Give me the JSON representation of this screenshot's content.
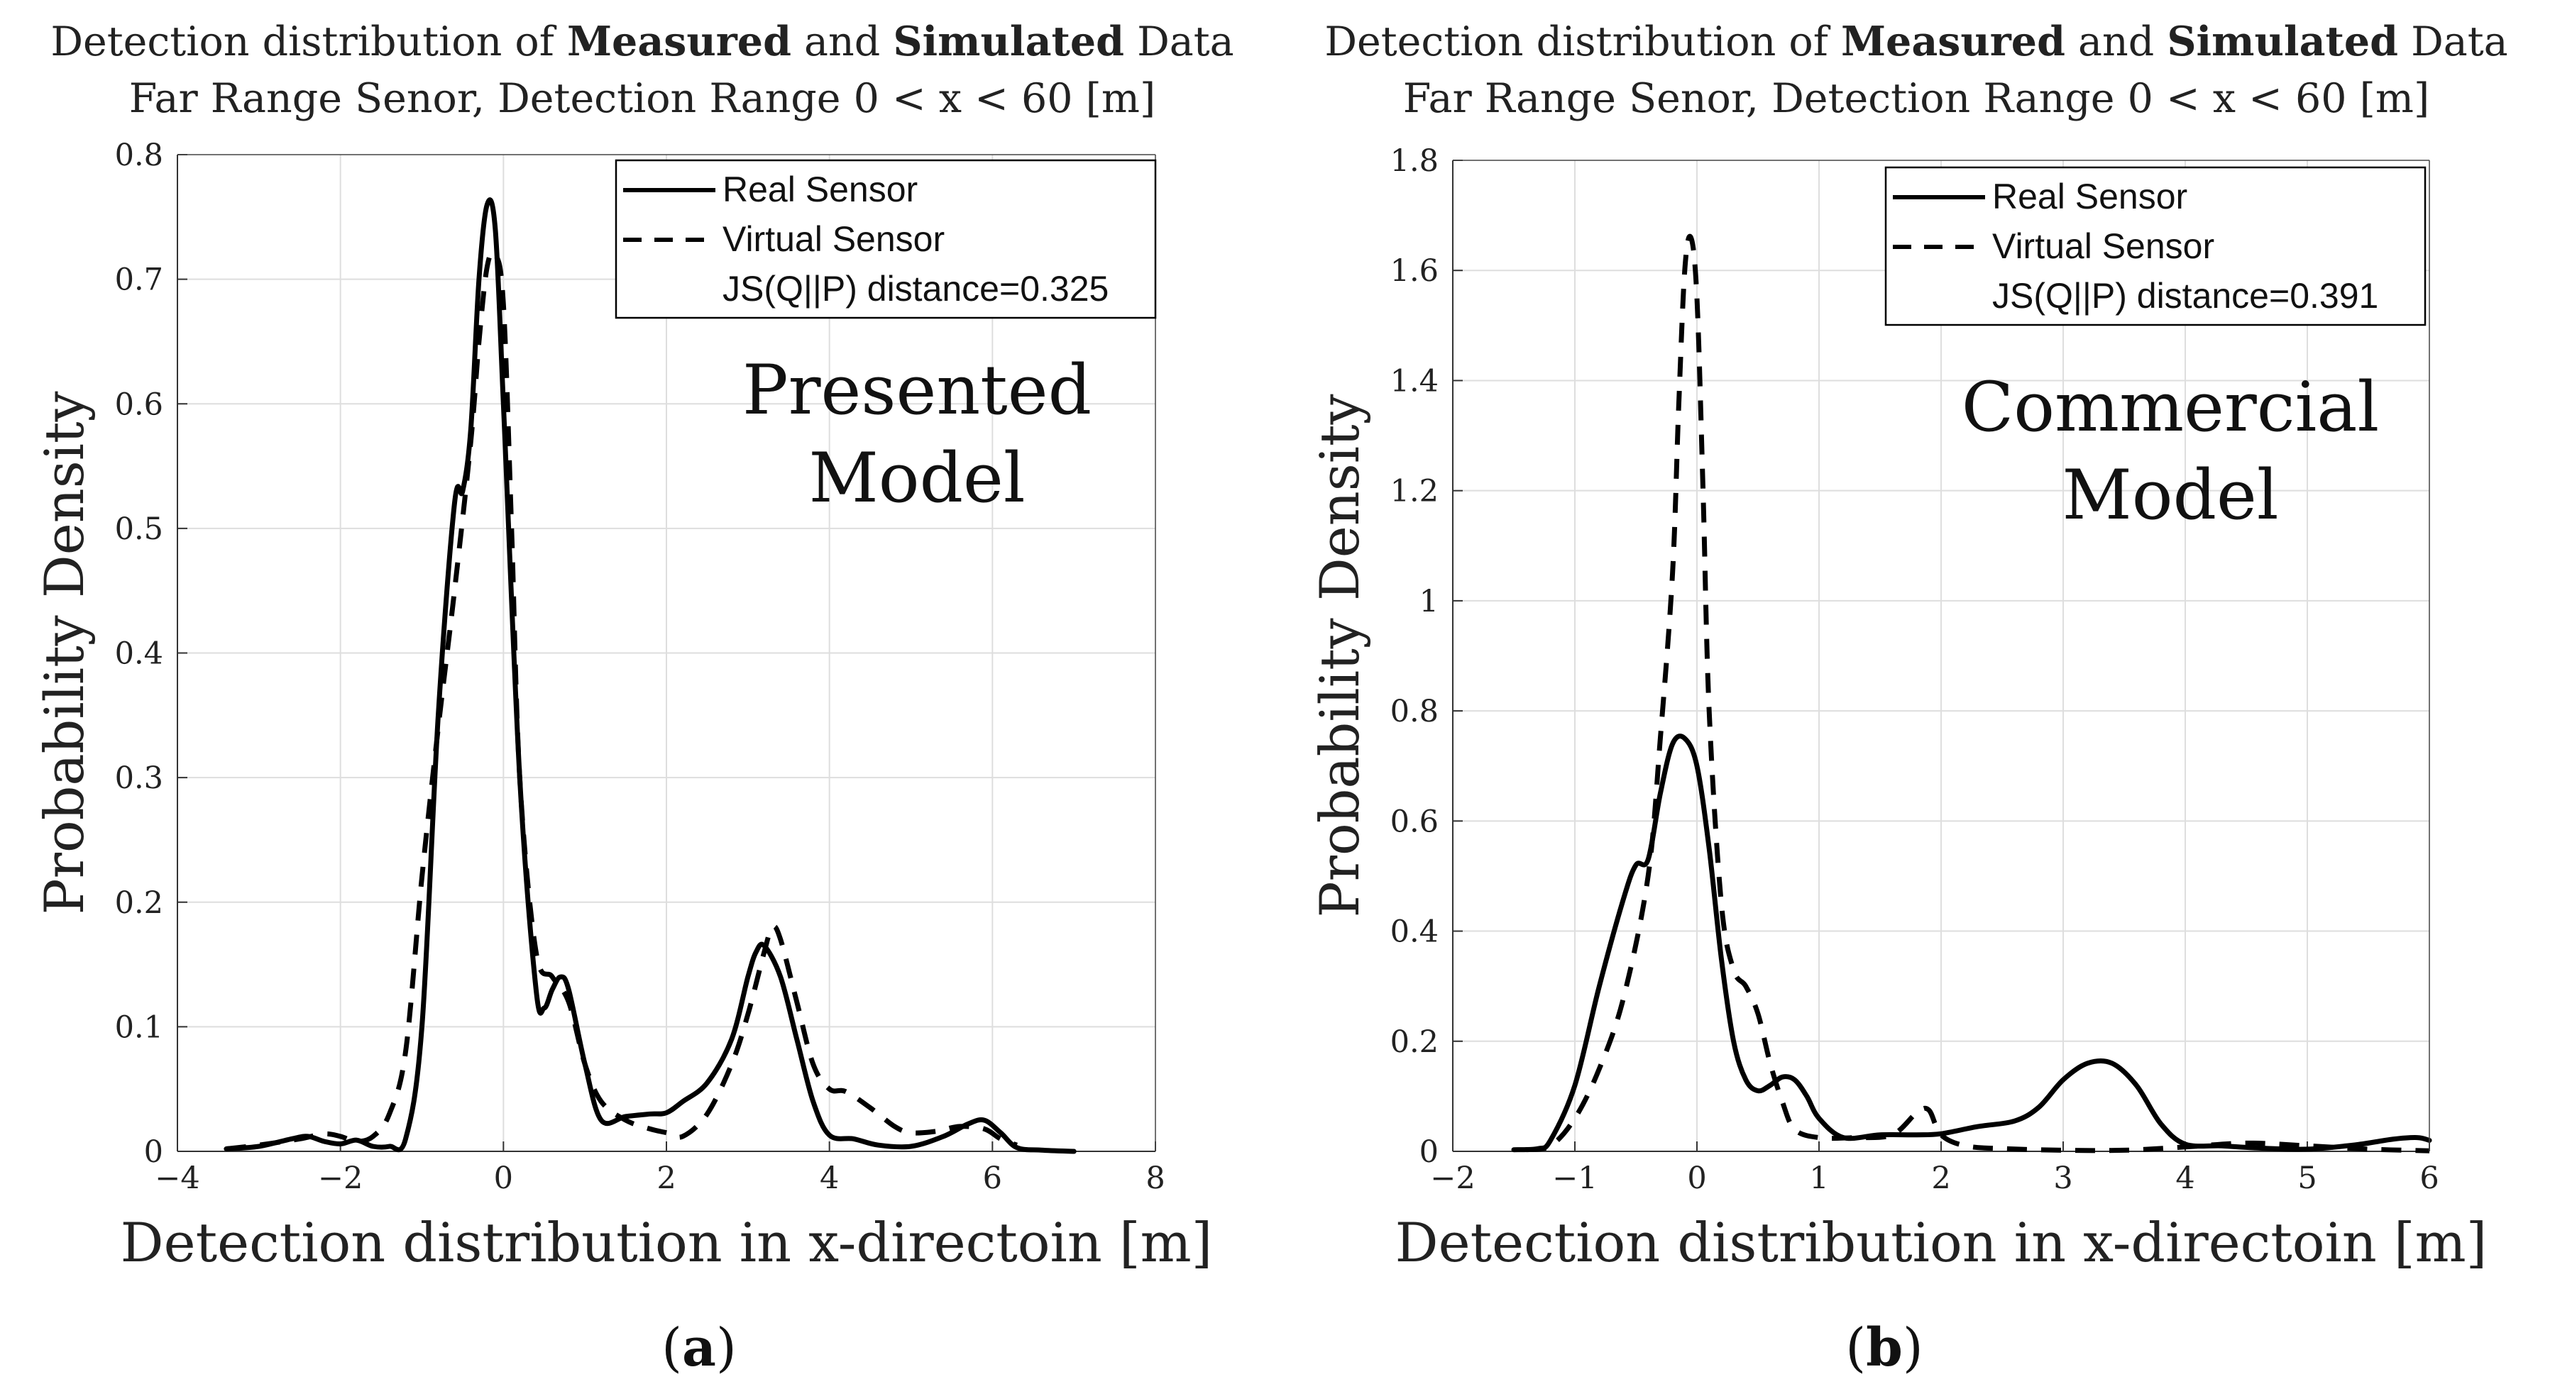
{
  "chart_data": [
    {
      "type": "line",
      "panel": "a",
      "caption_label": "a",
      "title_line1": {
        "pre": "Detection distribution of ",
        "bold1": "Measured",
        "mid": " and ",
        "bold2": "Simulated",
        "post": " Data"
      },
      "title_line2": "Far Range Senor, Detection Range 0 < x < 60 [m]",
      "annotation": [
        "Presented",
        "Model"
      ],
      "xlabel": "Detection distribution in x-directoin [m]",
      "ylabel": "Probability Density",
      "xlim": [
        -4,
        8
      ],
      "ylim": [
        0,
        0.8
      ],
      "xticks": [
        -4,
        -2,
        0,
        2,
        4,
        6,
        8
      ],
      "xtick_labels": [
        "−4",
        "−2",
        "0",
        "2",
        "4",
        "6",
        "8"
      ],
      "yticks": [
        0,
        0.1,
        0.2,
        0.3,
        0.4,
        0.5,
        0.6,
        0.7,
        0.8
      ],
      "ytick_labels": [
        "0",
        "0.1",
        "0.2",
        "0.3",
        "0.4",
        "0.5",
        "0.6",
        "0.7",
        "0.8"
      ],
      "legend": {
        "real": "Real Sensor",
        "virtual": "Virtual Sensor",
        "metric": "JS(Q||P) distance=0.325"
      },
      "series": [
        {
          "name": "Real Sensor",
          "style": "solid",
          "x": [
            -3.4,
            -3.0,
            -2.6,
            -2.4,
            -2.2,
            -2.0,
            -1.8,
            -1.6,
            -1.4,
            -1.2,
            -1.0,
            -0.8,
            -0.6,
            -0.5,
            -0.4,
            -0.3,
            -0.2,
            -0.1,
            0.0,
            0.2,
            0.4,
            0.5,
            0.6,
            0.7,
            0.8,
            1.0,
            1.2,
            1.5,
            1.8,
            2.0,
            2.2,
            2.5,
            2.8,
            3.0,
            3.1,
            3.2,
            3.4,
            3.6,
            3.8,
            4.0,
            4.3,
            4.6,
            5.0,
            5.4,
            5.7,
            5.9,
            6.1,
            6.3,
            6.6,
            7.0
          ],
          "y": [
            0.002,
            0.004,
            0.01,
            0.012,
            0.008,
            0.006,
            0.009,
            0.004,
            0.004,
            0.01,
            0.1,
            0.35,
            0.52,
            0.53,
            0.58,
            0.7,
            0.76,
            0.74,
            0.6,
            0.3,
            0.13,
            0.115,
            0.13,
            0.14,
            0.13,
            0.07,
            0.025,
            0.028,
            0.03,
            0.031,
            0.04,
            0.055,
            0.09,
            0.14,
            0.16,
            0.165,
            0.14,
            0.09,
            0.04,
            0.013,
            0.01,
            0.005,
            0.004,
            0.012,
            0.022,
            0.025,
            0.015,
            0.003,
            0.001,
            0.0
          ]
        },
        {
          "name": "Virtual Sensor",
          "style": "dashed",
          "x": [
            -3.4,
            -3.0,
            -2.5,
            -2.2,
            -2.0,
            -1.8,
            -1.6,
            -1.4,
            -1.2,
            -1.0,
            -0.8,
            -0.6,
            -0.4,
            -0.3,
            -0.2,
            -0.1,
            0.0,
            0.1,
            0.2,
            0.4,
            0.6,
            0.8,
            1.0,
            1.2,
            1.5,
            1.8,
            2.0,
            2.2,
            2.5,
            2.8,
            3.0,
            3.2,
            3.3,
            3.4,
            3.6,
            3.8,
            4.0,
            4.2,
            4.5,
            4.8,
            5.0,
            5.3,
            5.6,
            5.9,
            6.1,
            6.3
          ],
          "y": [
            0.002,
            0.005,
            0.01,
            0.014,
            0.012,
            0.008,
            0.012,
            0.03,
            0.08,
            0.22,
            0.34,
            0.45,
            0.57,
            0.65,
            0.71,
            0.72,
            0.68,
            0.5,
            0.3,
            0.16,
            0.14,
            0.12,
            0.07,
            0.04,
            0.025,
            0.018,
            0.015,
            0.012,
            0.03,
            0.07,
            0.11,
            0.16,
            0.18,
            0.17,
            0.12,
            0.07,
            0.05,
            0.048,
            0.035,
            0.02,
            0.015,
            0.016,
            0.02,
            0.018,
            0.01,
            0.005
          ]
        }
      ]
    },
    {
      "type": "line",
      "panel": "b",
      "caption_label": "b",
      "title_line1": {
        "pre": "Detection distribution of ",
        "bold1": "Measured",
        "mid": " and ",
        "bold2": "Simulated",
        "post": " Data"
      },
      "title_line2": "Far Range Senor, Detection Range 0 < x < 60 [m]",
      "annotation": [
        "Commercial",
        "Model"
      ],
      "xlabel": "Detection distribution in x-directoin [m]",
      "ylabel": "Probability Density",
      "xlim": [
        -2,
        6
      ],
      "ylim": [
        0,
        1.8
      ],
      "xticks": [
        -2,
        -1,
        0,
        1,
        2,
        3,
        4,
        5,
        6
      ],
      "xtick_labels": [
        "−2",
        "−1",
        "0",
        "1",
        "2",
        "3",
        "4",
        "5",
        "6"
      ],
      "yticks": [
        0,
        0.2,
        0.4,
        0.6,
        0.8,
        1.0,
        1.2,
        1.4,
        1.6,
        1.8
      ],
      "ytick_labels": [
        "0",
        "0.2",
        "0.4",
        "0.6",
        "0.8",
        "1",
        "1.2",
        "1.4",
        "1.6",
        "1.8"
      ],
      "legend": {
        "real": "Real Sensor",
        "virtual": "Virtual Sensor",
        "metric": "JS(Q||P) distance=0.391"
      },
      "series": [
        {
          "name": "Real Sensor",
          "style": "solid",
          "x": [
            -1.5,
            -1.3,
            -1.2,
            -1.0,
            -0.8,
            -0.6,
            -0.5,
            -0.4,
            -0.3,
            -0.2,
            -0.1,
            0.0,
            0.1,
            0.2,
            0.3,
            0.4,
            0.5,
            0.6,
            0.7,
            0.8,
            0.9,
            1.0,
            1.2,
            1.5,
            1.8,
            2.0,
            2.3,
            2.6,
            2.8,
            3.0,
            3.2,
            3.4,
            3.6,
            3.8,
            4.0,
            4.3,
            4.6,
            5.0,
            5.4,
            5.7,
            5.9,
            6.0
          ],
          "y": [
            0.003,
            0.005,
            0.02,
            0.12,
            0.3,
            0.46,
            0.52,
            0.53,
            0.65,
            0.74,
            0.75,
            0.7,
            0.55,
            0.35,
            0.2,
            0.13,
            0.11,
            0.12,
            0.135,
            0.13,
            0.1,
            0.06,
            0.025,
            0.03,
            0.03,
            0.032,
            0.045,
            0.055,
            0.08,
            0.13,
            0.16,
            0.16,
            0.12,
            0.05,
            0.013,
            0.01,
            0.006,
            0.004,
            0.012,
            0.022,
            0.025,
            0.02
          ]
        },
        {
          "name": "Virtual Sensor",
          "style": "dashed",
          "x": [
            -1.4,
            -1.2,
            -1.0,
            -0.8,
            -0.6,
            -0.4,
            -0.3,
            -0.2,
            -0.15,
            -0.1,
            -0.05,
            0.0,
            0.05,
            0.1,
            0.2,
            0.3,
            0.4,
            0.5,
            0.6,
            0.7,
            0.8,
            1.0,
            1.3,
            1.6,
            1.8,
            1.9,
            2.0,
            2.2,
            2.5,
            3.0,
            3.5,
            4.0,
            4.5,
            5.0,
            5.5,
            6.0
          ],
          "y": [
            0.003,
            0.01,
            0.06,
            0.15,
            0.28,
            0.5,
            0.75,
            1.05,
            1.35,
            1.6,
            1.66,
            1.55,
            1.2,
            0.8,
            0.45,
            0.33,
            0.3,
            0.25,
            0.16,
            0.09,
            0.04,
            0.025,
            0.025,
            0.03,
            0.07,
            0.075,
            0.03,
            0.01,
            0.005,
            0.002,
            0.002,
            0.008,
            0.015,
            0.01,
            0.004,
            0.001
          ]
        }
      ]
    }
  ]
}
